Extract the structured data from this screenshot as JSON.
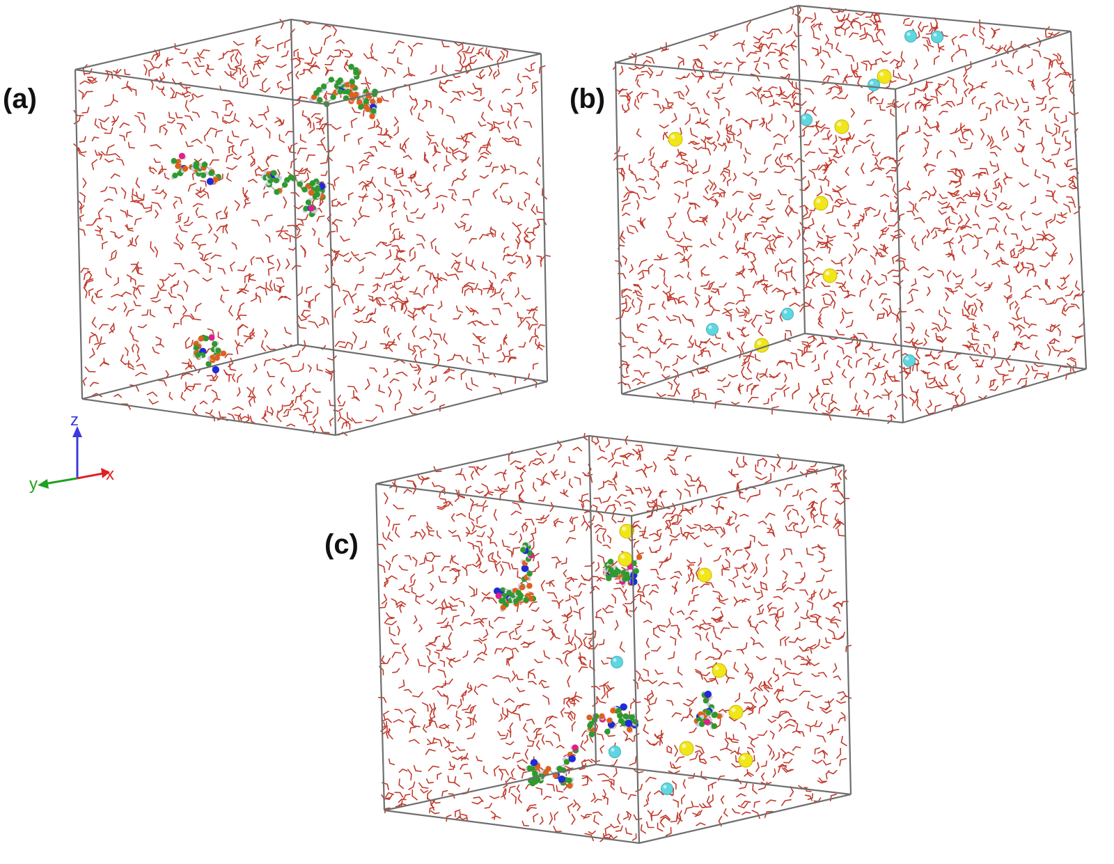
{
  "panels": [
    {
      "id": "a",
      "label": "(a)",
      "contents": [
        "water",
        "polymer"
      ]
    },
    {
      "id": "b",
      "label": "(b)",
      "contents": [
        "water",
        "ions"
      ]
    },
    {
      "id": "c",
      "label": "(c)",
      "contents": [
        "water",
        "polymer",
        "ions"
      ]
    }
  ],
  "axes": {
    "z": "z",
    "y": "y",
    "x": "x"
  },
  "colors": {
    "box_edge": "#6e6e6e",
    "water_oxygen": "#c0392b",
    "water_hydrogen": "#e6e6e6",
    "polymer_carbon": "#2e9a2e",
    "polymer_oxygen": "#e0601c",
    "polymer_nitrogen": "#1f2bd6",
    "polymer_charged": "#e01f8c",
    "polymer_hydrogen": "#cfcfe0",
    "ion_yellow": "#f0e61a",
    "ion_cyan": "#5fd6e0",
    "axis_z": "#3a3ae0",
    "axis_y": "#20a020",
    "axis_x": "#e02020"
  }
}
